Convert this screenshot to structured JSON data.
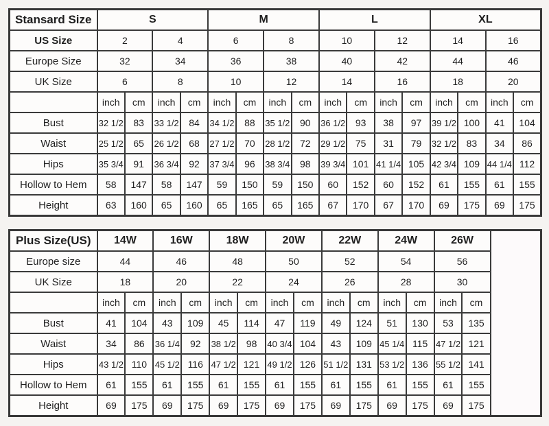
{
  "page": {
    "background": "#f5f3f1",
    "cell_background": "#fdfcfb",
    "border_color": "#3a3a3a",
    "text_color": "#1f1f1f"
  },
  "units": [
    "inch",
    "cm"
  ],
  "standard_table": {
    "title": "Stansard Size",
    "size_groups": [
      "S",
      "M",
      "L",
      "XL"
    ],
    "top_rows": [
      {
        "label": "US Size",
        "bold": true,
        "values": [
          "2",
          "4",
          "6",
          "8",
          "10",
          "12",
          "14",
          "16"
        ]
      },
      {
        "label": "Europe Size",
        "bold": false,
        "values": [
          "32",
          "34",
          "36",
          "38",
          "40",
          "42",
          "44",
          "46"
        ]
      },
      {
        "label": "UK Size",
        "bold": false,
        "values": [
          "6",
          "8",
          "10",
          "12",
          "14",
          "16",
          "18",
          "20"
        ]
      }
    ],
    "measure_rows": [
      {
        "label": "Bust",
        "values": [
          "32 1/2",
          "83",
          "33 1/2",
          "84",
          "34 1/2",
          "88",
          "35 1/2",
          "90",
          "36 1/2",
          "93",
          "38",
          "97",
          "39 1/2",
          "100",
          "41",
          "104"
        ]
      },
      {
        "label": "Waist",
        "values": [
          "25 1/2",
          "65",
          "26 1/2",
          "68",
          "27 1/2",
          "70",
          "28 1/2",
          "72",
          "29 1/2",
          "75",
          "31",
          "79",
          "32 1/2",
          "83",
          "34",
          "86"
        ]
      },
      {
        "label": "Hips",
        "values": [
          "35 3/4",
          "91",
          "36 3/4",
          "92",
          "37 3/4",
          "96",
          "38 3/4",
          "98",
          "39 3/4",
          "101",
          "41 1/4",
          "105",
          "42 3/4",
          "109",
          "44 1/4",
          "112"
        ]
      },
      {
        "label": "Hollow to Hem",
        "values": [
          "58",
          "147",
          "58",
          "147",
          "59",
          "150",
          "59",
          "150",
          "60",
          "152",
          "60",
          "152",
          "61",
          "155",
          "61",
          "155"
        ]
      },
      {
        "label": "Height",
        "values": [
          "63",
          "160",
          "65",
          "160",
          "65",
          "165",
          "65",
          "165",
          "67",
          "170",
          "67",
          "170",
          "69",
          "175",
          "69",
          "175"
        ]
      }
    ]
  },
  "plus_table": {
    "title": "Plus Size(US)",
    "size_groups": [
      "14W",
      "16W",
      "18W",
      "20W",
      "22W",
      "24W",
      "26W"
    ],
    "has_trailing_empty_column": true,
    "top_rows": [
      {
        "label": "Europe size",
        "bold": false,
        "values": [
          "44",
          "46",
          "48",
          "50",
          "52",
          "54",
          "56"
        ]
      },
      {
        "label": "UK Size",
        "bold": false,
        "values": [
          "18",
          "20",
          "22",
          "24",
          "26",
          "28",
          "30"
        ]
      }
    ],
    "measure_rows": [
      {
        "label": "Bust",
        "values": [
          "41",
          "104",
          "43",
          "109",
          "45",
          "114",
          "47",
          "119",
          "49",
          "124",
          "51",
          "130",
          "53",
          "135"
        ]
      },
      {
        "label": "Waist",
        "values": [
          "34",
          "86",
          "36 1/4",
          "92",
          "38 1/2",
          "98",
          "40 3/4",
          "104",
          "43",
          "109",
          "45 1/4",
          "115",
          "47 1/2",
          "121"
        ]
      },
      {
        "label": "Hips",
        "values": [
          "43 1/2",
          "110",
          "45 1/2",
          "116",
          "47 1/2",
          "121",
          "49 1/2",
          "126",
          "51 1/2",
          "131",
          "53 1/2",
          "136",
          "55 1/2",
          "141"
        ]
      },
      {
        "label": "Hollow to Hem",
        "values": [
          "61",
          "155",
          "61",
          "155",
          "61",
          "155",
          "61",
          "155",
          "61",
          "155",
          "61",
          "155",
          "61",
          "155"
        ]
      },
      {
        "label": "Height",
        "values": [
          "69",
          "175",
          "69",
          "175",
          "69",
          "175",
          "69",
          "175",
          "69",
          "175",
          "69",
          "175",
          "69",
          "175"
        ]
      }
    ]
  }
}
